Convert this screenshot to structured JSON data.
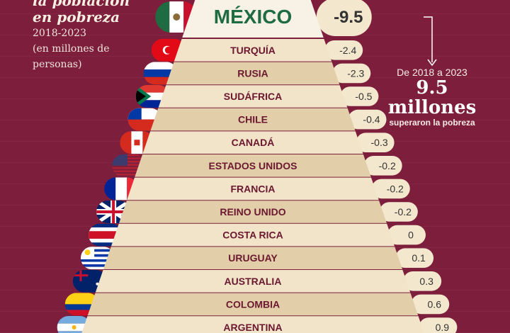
{
  "header": {
    "title_line1": "la población",
    "title_line2": "en pobreza",
    "period": "2018-2023",
    "units_line1": "(en millones de",
    "units_line2": "personas)"
  },
  "annotation": {
    "line1": "De 2018 a 2023",
    "big_value": "9.5",
    "big_label": "millones",
    "line3": "superaron la pobreza"
  },
  "colors": {
    "background": "#7d1f3c",
    "band_light": "#f1e4c8",
    "band_dark": "#e2cfa9",
    "label_text": "#6b1830",
    "mexico_text": "#1f6b42",
    "pill": "#f3e7ce"
  },
  "chart_data": {
    "type": "bar",
    "title": "",
    "categories": [
      "MÉXICO",
      "TURQUÍA",
      "RUSIA",
      "SUDÁFRICA",
      "CHILE",
      "CANADÁ",
      "ESTADOS UNIDOS",
      "FRANCIA",
      "REINO UNIDO",
      "COSTA RICA",
      "URUGUAY",
      "AUSTRALIA",
      "COLOMBIA",
      "ARGENTINA"
    ],
    "values": [
      -9.5,
      -2.4,
      -2.3,
      -0.5,
      -0.4,
      -0.3,
      -0.2,
      -0.2,
      -0.2,
      0,
      0.1,
      0.3,
      0.6,
      0.9
    ],
    "value_labels": [
      "-9.5",
      "-2.4",
      "-2.3",
      "-0.5",
      "-0.4",
      "-0.3",
      "-0.2",
      "-0.2",
      "-0.2",
      "0",
      "0.1",
      "0.3",
      "0.6",
      "0.9"
    ],
    "flag_icons": [
      "mexico-flag-icon",
      "turkey-flag-icon",
      "russia-flag-icon",
      "south-africa-flag-icon",
      "chile-flag-icon",
      "canada-flag-icon",
      "usa-flag-icon",
      "france-flag-icon",
      "uk-flag-icon",
      "costa-rica-flag-icon",
      "uruguay-flag-icon",
      "australia-flag-icon",
      "colombia-flag-icon",
      "argentina-flag-icon"
    ]
  }
}
